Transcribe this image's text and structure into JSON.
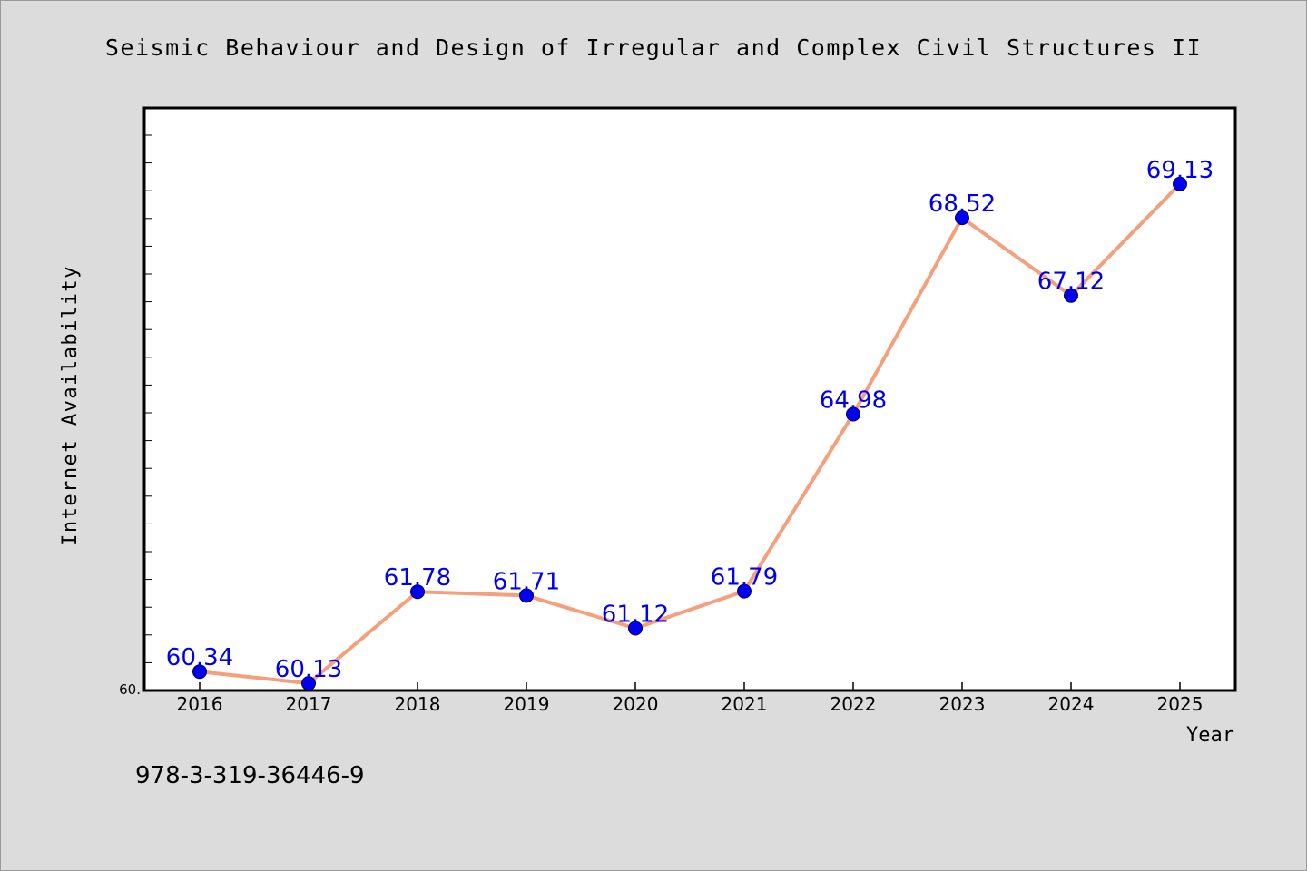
{
  "chart_data": {
    "type": "line",
    "title": "Seismic Behaviour and Design of Irregular and Complex Civil Structures II",
    "xlabel": "Year",
    "ylabel": "Internet Availability",
    "y_axis_start_label": "60.",
    "categories": [
      "2016",
      "2017",
      "2018",
      "2019",
      "2020",
      "2021",
      "2022",
      "2023",
      "2024",
      "2025"
    ],
    "series": [
      {
        "values": [
          60.34,
          60.13,
          61.78,
          61.71,
          61.12,
          61.79,
          64.98,
          68.52,
          67.12,
          69.13
        ],
        "labels": [
          "60.34",
          "60.13",
          "61.78",
          "61.71",
          "61.12",
          "61.79",
          "64.98",
          "68.52",
          "67.12",
          "69.13"
        ]
      }
    ],
    "ylim": [
      60.0,
      70.5
    ],
    "grid": false,
    "legend": "none",
    "colors": {
      "line": "#f4a07c",
      "marker": "#0000ee",
      "data_label": "#0000ee",
      "plot_bg": "#ffffff",
      "page_bg": "#dcdcdc",
      "frame": "#000000"
    }
  },
  "footer": {
    "isbn": "978-3-319-36446-9"
  }
}
